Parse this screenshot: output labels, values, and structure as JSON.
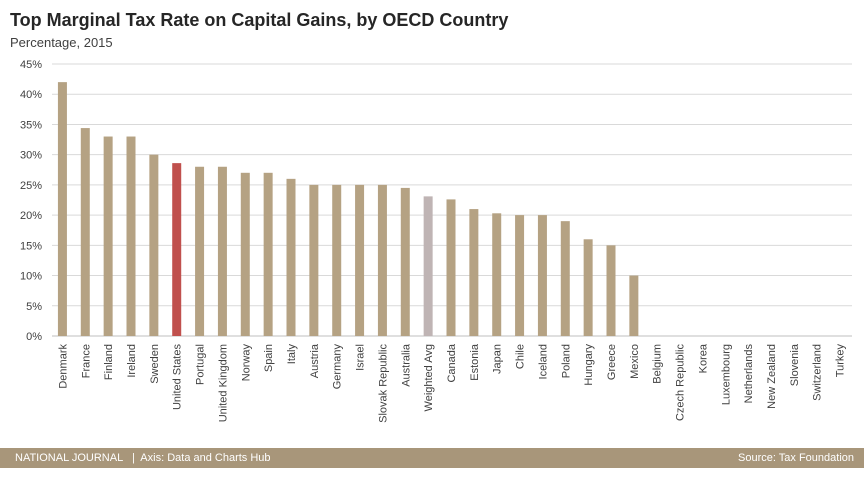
{
  "header": {
    "title": "Top Marginal Tax Rate on Capital Gains, by OECD Country",
    "subtitle": "Percentage, 2015"
  },
  "footer": {
    "left": "NATIONAL JOURNAL   |  Axis: Data and Charts Hub",
    "right": "Source: Tax Foundation"
  },
  "colors": {
    "default_bar": "#b5a283",
    "us_bar": "#c0504d",
    "avg_bar": "#bfb4b4",
    "gridline": "#d9d9d9",
    "footer_bg": "#a8967a"
  },
  "chart_data": {
    "type": "bar",
    "title": "Top Marginal Tax Rate on Capital Gains, by OECD Country",
    "subtitle": "Percentage, 2015",
    "ylim": [
      0,
      45
    ],
    "yticks": [
      "0%",
      "5%",
      "10%",
      "15%",
      "20%",
      "25%",
      "30%",
      "35%",
      "40%",
      "45%"
    ],
    "grid": true,
    "categories": [
      "Denmark",
      "France",
      "Finland",
      "Ireland",
      "Sweden",
      "United States",
      "Portugal",
      "United Kingdom",
      "Norway",
      "Spain",
      "Italy",
      "Austria",
      "Germany",
      "Israel",
      "Slovak Republic",
      "Australia",
      "Weighted Avg",
      "Canada",
      "Estonia",
      "Japan",
      "Chile",
      "Iceland",
      "Poland",
      "Hungary",
      "Greece",
      "Mexico",
      "Belgium",
      "Czech Republic",
      "Korea",
      "Luxembourg",
      "Netherlands",
      "New Zealand",
      "Slovenia",
      "Switzerland",
      "Turkey"
    ],
    "values": [
      42,
      34.4,
      33,
      33,
      30,
      28.6,
      28,
      28,
      27,
      27,
      26,
      25,
      25,
      25,
      25,
      24.5,
      23.1,
      22.6,
      21,
      20.3,
      20,
      20,
      19,
      16,
      15,
      10,
      0,
      0,
      0,
      0,
      0,
      0,
      0,
      0,
      0
    ],
    "highlight": {
      "United States": "us",
      "Weighted Avg": "avg"
    }
  }
}
